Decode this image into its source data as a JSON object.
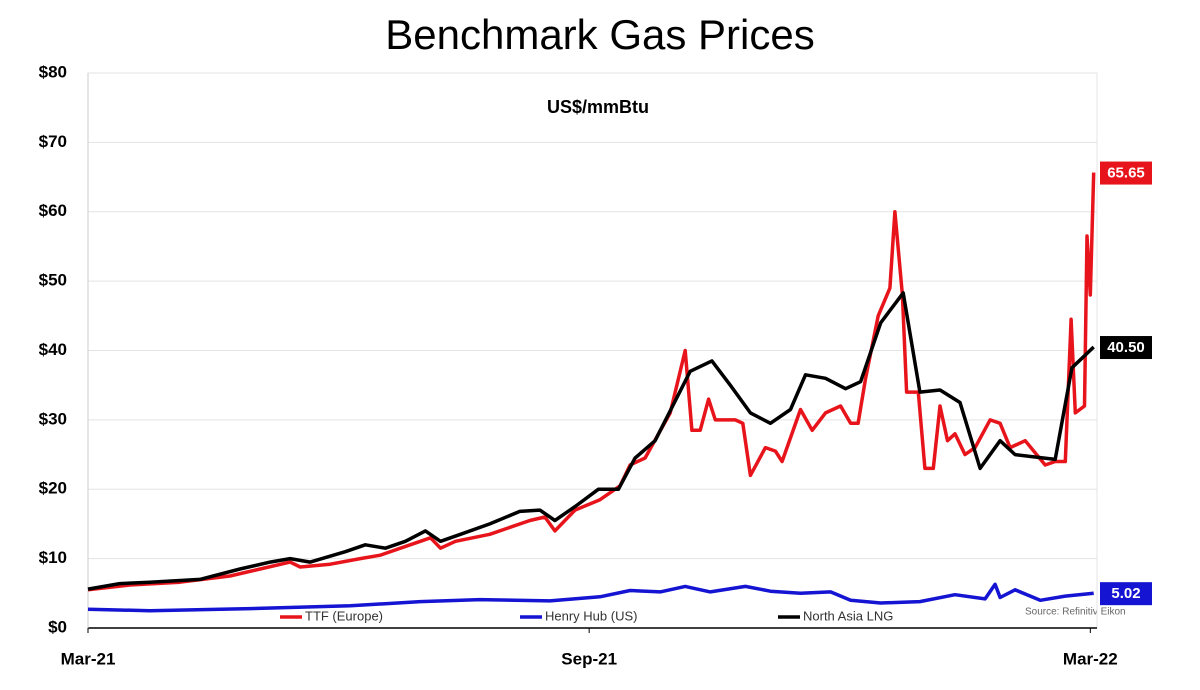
{
  "chart_data": {
    "type": "line",
    "title": "Benchmark Gas Prices",
    "subtitle": "US$/mmBtu",
    "source": "Source: Refinitiv Eikon",
    "xlim": [
      0,
      12.08
    ],
    "xticks": [
      {
        "value": 0,
        "label": "Mar-21"
      },
      {
        "value": 6,
        "label": "Sep-21"
      },
      {
        "value": 12,
        "label": "Mar-22"
      }
    ],
    "ylim": [
      0,
      80
    ],
    "yticks": [
      {
        "value": 0,
        "label": "$0"
      },
      {
        "value": 10,
        "label": "$10"
      },
      {
        "value": 20,
        "label": "$20"
      },
      {
        "value": 30,
        "label": "$30"
      },
      {
        "value": 40,
        "label": "$40"
      },
      {
        "value": 50,
        "label": "$50"
      },
      {
        "value": 60,
        "label": "$60"
      },
      {
        "value": 70,
        "label": "$70"
      },
      {
        "value": 80,
        "label": "$80"
      }
    ],
    "grid": true,
    "legend": "bottom",
    "series": [
      {
        "name": "TTF (Europe)",
        "color": "#e8141b",
        "end_label": "65.65",
        "x": [
          0,
          0.5,
          1.1,
          1.7,
          2.06,
          2.42,
          2.54,
          2.9,
          3.26,
          3.5,
          3.74,
          4.1,
          4.22,
          4.4,
          4.81,
          5.29,
          5.47,
          5.59,
          5.83,
          6.13,
          6.37,
          6.49,
          6.67,
          6.97,
          7.15,
          7.23,
          7.33,
          7.43,
          7.51,
          7.75,
          7.84,
          7.93,
          8.11,
          8.23,
          8.31,
          8.53,
          8.67,
          8.83,
          9.01,
          9.13,
          9.22,
          9.31,
          9.46,
          9.6,
          9.66,
          9.75,
          9.8,
          9.94,
          10.02,
          10.12,
          10.2,
          10.29,
          10.38,
          10.5,
          10.62,
          10.8,
          10.92,
          11.04,
          11.22,
          11.46,
          11.58,
          11.7,
          11.77,
          11.82,
          11.93,
          11.96,
          12.0,
          12.04
        ],
        "values": [
          5.5,
          6.2,
          6.6,
          7.5,
          8.5,
          9.5,
          8.8,
          9.2,
          10,
          10.5,
          11.5,
          13,
          11.5,
          12.5,
          13.5,
          15.5,
          16,
          14,
          17,
          18.5,
          20.5,
          23.5,
          24.5,
          31,
          40,
          28.5,
          28.5,
          33,
          30,
          30,
          29.5,
          22,
          26,
          25.5,
          24,
          31.5,
          28.5,
          31,
          32,
          29.5,
          29.5,
          36,
          45,
          49,
          60,
          48,
          34,
          34,
          23,
          23,
          32,
          27,
          28,
          25,
          26,
          30,
          29.5,
          26,
          27,
          23.5,
          24,
          24,
          44.5,
          31,
          32,
          56.5,
          48,
          65.65
        ]
      },
      {
        "name": "Henry Hub (US)",
        "color": "#1414d2",
        "end_label": "5.02",
        "x": [
          0,
          0.74,
          1.94,
          3.14,
          3.98,
          4.69,
          5.53,
          6.13,
          6.49,
          6.85,
          7.15,
          7.45,
          7.87,
          8.17,
          8.53,
          8.89,
          9.13,
          9.49,
          9.96,
          10.38,
          10.74,
          10.86,
          10.92,
          11.1,
          11.4,
          11.7,
          12.04
        ],
        "values": [
          2.7,
          2.5,
          2.8,
          3.2,
          3.8,
          4.1,
          3.9,
          4.5,
          5.4,
          5.2,
          6,
          5.2,
          6,
          5.3,
          5,
          5.2,
          4,
          3.6,
          3.8,
          4.8,
          4.2,
          6.3,
          4.4,
          5.5,
          4,
          4.6,
          5.02
        ]
      },
      {
        "name": "North Asia LNG",
        "color": "#000000",
        "end_label": "40.50",
        "x": [
          0,
          0.38,
          0.74,
          1.34,
          1.82,
          2.18,
          2.42,
          2.66,
          3.08,
          3.32,
          3.56,
          3.8,
          4.04,
          4.22,
          4.46,
          4.81,
          5.17,
          5.41,
          5.59,
          5.83,
          6.11,
          6.35,
          6.55,
          6.79,
          7.21,
          7.47,
          7.69,
          7.93,
          8.17,
          8.41,
          8.59,
          8.83,
          9.07,
          9.25,
          9.49,
          9.76,
          9.96,
          10.2,
          10.44,
          10.68,
          10.92,
          11.1,
          11.58,
          11.78,
          12.04
        ],
        "values": [
          5.6,
          6.4,
          6.6,
          7,
          8.5,
          9.5,
          10,
          9.5,
          11,
          12,
          11.5,
          12.5,
          14,
          12.5,
          13.5,
          15,
          16.8,
          17,
          15.5,
          17.5,
          20,
          20,
          24.5,
          27,
          37,
          38.5,
          35,
          31,
          29.5,
          31.5,
          36.5,
          36,
          34.5,
          35.5,
          44,
          48.3,
          34,
          34.3,
          32.5,
          23,
          27,
          25,
          24.3,
          37.5,
          40.5
        ]
      }
    ]
  }
}
